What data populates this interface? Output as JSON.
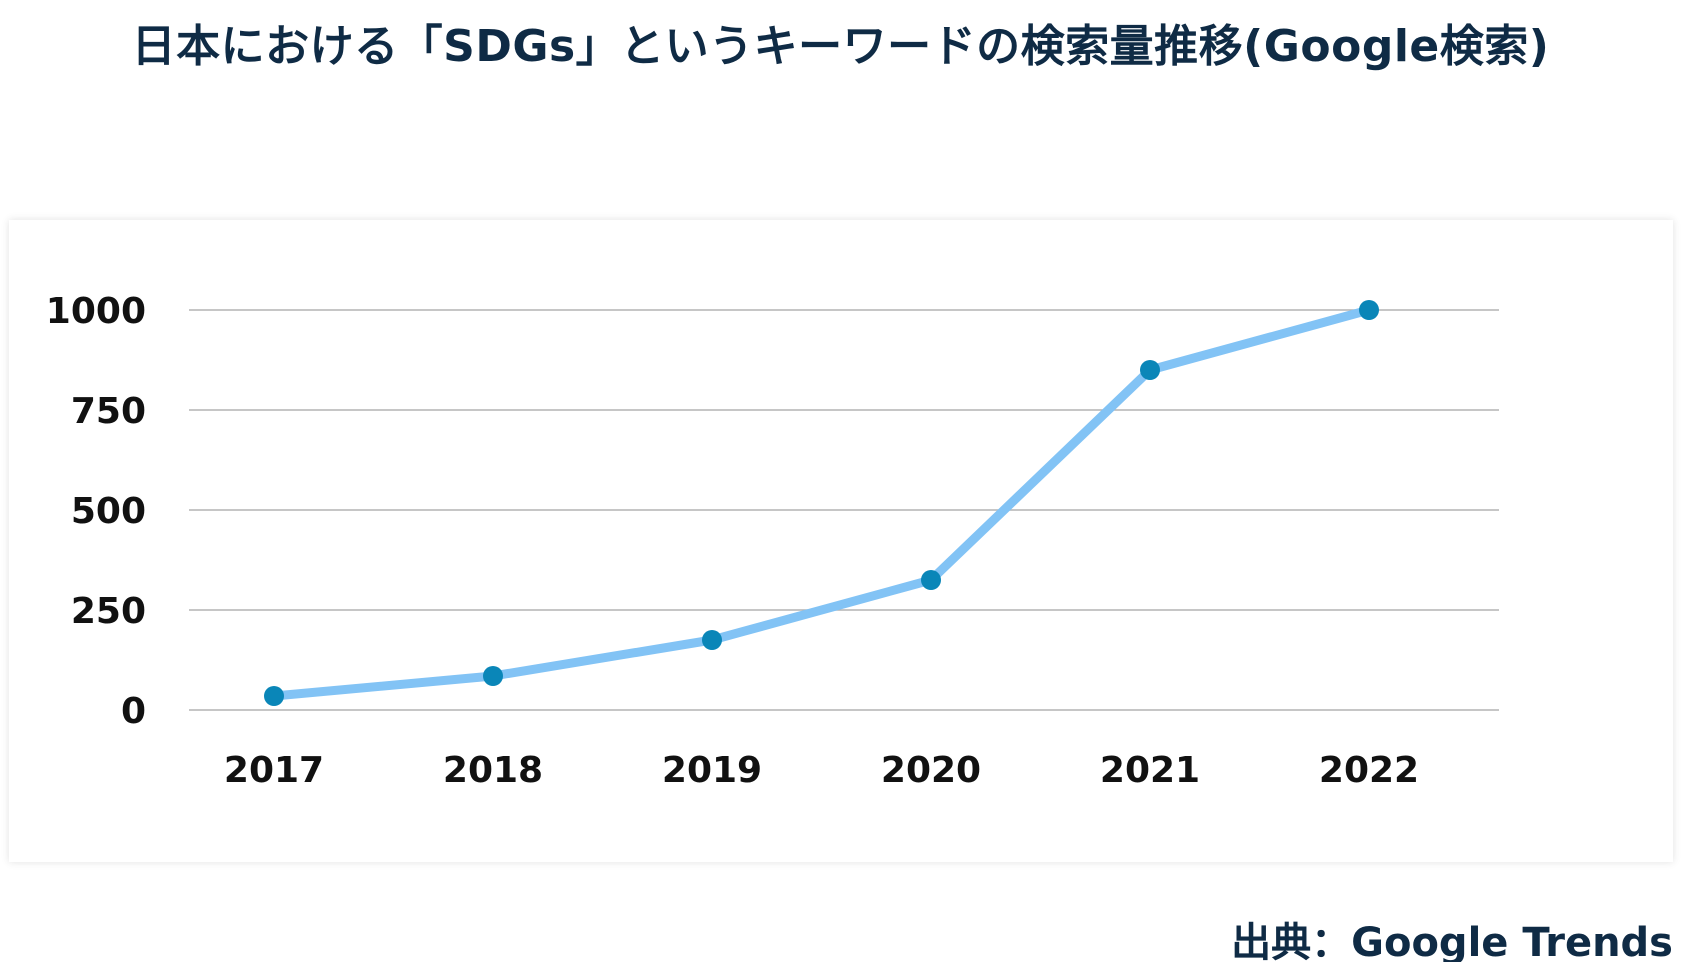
{
  "title": "日本における「SDGs」というキーワードの検索量推移(Google検索)",
  "source": "出典：Google Trends",
  "colors": {
    "title": "#0f2b45",
    "line": "#82c3f5",
    "marker": "#0a86b8",
    "grid": "#b4b4b4",
    "text": "#111111"
  },
  "chart_data": {
    "type": "line",
    "title": "日本における「SDGs」というキーワードの検索量推移(Google検索)",
    "xlabel": "",
    "ylabel": "",
    "categories": [
      "2017",
      "2018",
      "2019",
      "2020",
      "2021",
      "2022"
    ],
    "series": [
      {
        "values": [
          35,
          85,
          175,
          325,
          850,
          1000
        ]
      }
    ],
    "yticks": [
      0,
      250,
      500,
      750,
      1000
    ],
    "ytick_labels": [
      "0",
      "250",
      "500",
      "750",
      "1000"
    ],
    "ylim": [
      0,
      1000
    ],
    "grid": true,
    "legend": "none",
    "markers": true
  }
}
